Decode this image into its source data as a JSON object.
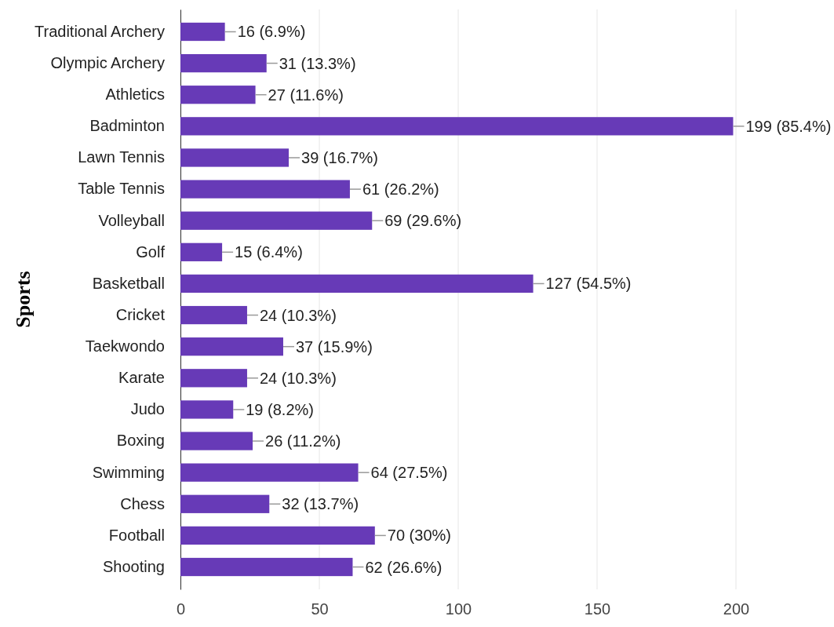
{
  "chart_data": {
    "type": "bar",
    "orientation": "horizontal",
    "ylabel": "Sports",
    "categories": [
      "Traditional Archery",
      "Olympic Archery",
      "Athletics",
      "Badminton",
      "Lawn Tennis",
      "Table Tennis",
      "Volleyball",
      "Golf",
      "Basketball",
      "Cricket",
      "Taekwondo",
      "Karate",
      "Judo",
      "Boxing",
      "Swimming",
      "Chess",
      "Football",
      "Shooting"
    ],
    "values": [
      16,
      31,
      27,
      199,
      39,
      61,
      69,
      15,
      127,
      24,
      37,
      24,
      19,
      26,
      64,
      32,
      70,
      62
    ],
    "value_labels": [
      "16 (6.9%)",
      "31 (13.3%)",
      "27 (11.6%)",
      "199 (85.4%)",
      "39 (16.7%)",
      "61 (26.2%)",
      "69 (29.6%)",
      "15 (6.4%)",
      "127 (54.5%)",
      "24 (10.3%)",
      "37 (15.9%)",
      "24 (10.3%)",
      "19 (8.2%)",
      "26 (11.2%)",
      "64 (27.5%)",
      "32 (13.7%)",
      "70 (30%)",
      "62 (26.6%)"
    ],
    "color": "#673ab7",
    "xlim": [
      0,
      200
    ],
    "xticks": [
      0,
      50,
      100,
      150,
      200
    ],
    "grid": "x"
  }
}
